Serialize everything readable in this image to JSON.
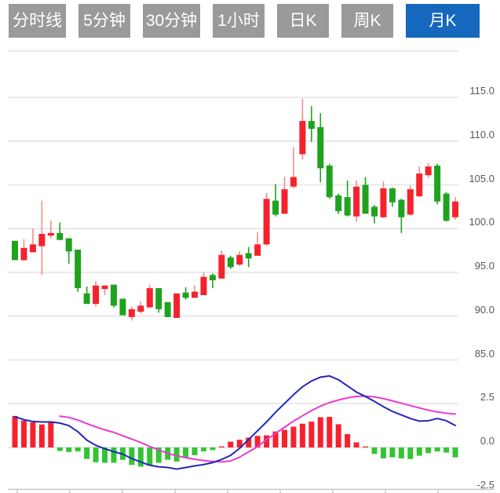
{
  "tabs": {
    "items": [
      {
        "label": "分时线",
        "active": false
      },
      {
        "label": "5分钟",
        "active": false
      },
      {
        "label": "30分钟",
        "active": false
      },
      {
        "label": "1小时",
        "active": false
      },
      {
        "label": "日K",
        "active": false
      },
      {
        "label": "周K",
        "active": false
      },
      {
        "label": "月K",
        "active": true
      }
    ]
  },
  "colors": {
    "tab_bg": "#9a9a9a",
    "tab_active_bg": "#1568bd",
    "tab_text": "#ffffff",
    "up": "#f5222d",
    "down": "#1fa31f",
    "up_wick": "#ef8f8f",
    "down_wick": "#1fa31f",
    "hist_up": "#f5222d",
    "hist_down": "#33c433",
    "dif_line": "#2326bb",
    "dea_line": "#ea3bd0",
    "grid": "#e3e3e3",
    "axis_line": "#c8c8c8",
    "axis_text": "#595959"
  },
  "chart_data": {
    "type": "candlestick",
    "title": "",
    "panels": [
      "price",
      "macd"
    ],
    "price_axis": {
      "tick_labels": [
        "115.0",
        "110.0",
        "105.0",
        "100.0",
        "95.0",
        "90.0",
        "85.0"
      ],
      "tick_values": [
        115,
        110,
        105,
        100,
        95,
        90,
        85
      ],
      "ylim": [
        84,
        120.5
      ],
      "grid": true,
      "legend": "none"
    },
    "macd_axis": {
      "tick_labels": [
        "2.5",
        "0.0",
        "-2.5"
      ],
      "tick_values": [
        2.5,
        0.0,
        -2.5
      ],
      "ylim": [
        -2.6,
        4.7
      ]
    },
    "candles_ohlc": [
      [
        98.6,
        98.6,
        96.4,
        96.4
      ],
      [
        96.4,
        98.8,
        96.3,
        97.8
      ],
      [
        97.3,
        100.0,
        97.3,
        98.2
      ],
      [
        98.0,
        103.2,
        94.7,
        99.4
      ],
      [
        99.2,
        100.9,
        98.9,
        99.5
      ],
      [
        99.5,
        100.7,
        98.7,
        98.7
      ],
      [
        98.9,
        98.9,
        96.0,
        97.4
      ],
      [
        97.6,
        97.6,
        92.8,
        93.2
      ],
      [
        92.6,
        93.4,
        91.4,
        91.4
      ],
      [
        91.4,
        94.0,
        91.1,
        93.5
      ],
      [
        93.1,
        93.5,
        92.4,
        93.5
      ],
      [
        93.6,
        93.6,
        91.0,
        91.2
      ],
      [
        92.0,
        92.0,
        90.1,
        90.1
      ],
      [
        89.9,
        91.1,
        89.5,
        90.8
      ],
      [
        90.5,
        91.7,
        90.3,
        91.2
      ],
      [
        91.0,
        93.6,
        91.0,
        93.2
      ],
      [
        93.2,
        93.2,
        90.4,
        90.8
      ],
      [
        91.6,
        91.6,
        89.9,
        89.9
      ],
      [
        89.8,
        92.6,
        89.8,
        92.6
      ],
      [
        92.7,
        93.3,
        91.9,
        92.1
      ],
      [
        92.1,
        93.5,
        92.1,
        92.8
      ],
      [
        92.4,
        95.0,
        92.4,
        94.5
      ],
      [
        94.7,
        94.9,
        93.2,
        94.1
      ],
      [
        94.3,
        97.5,
        94.3,
        97.0
      ],
      [
        96.7,
        96.9,
        95.4,
        95.6
      ],
      [
        95.9,
        97.4,
        95.7,
        97.0
      ],
      [
        97.2,
        97.9,
        95.6,
        96.6
      ],
      [
        96.9,
        99.6,
        96.9,
        98.2
      ],
      [
        98.2,
        104.1,
        98.0,
        103.4
      ],
      [
        103.2,
        105.1,
        101.4,
        101.6
      ],
      [
        101.7,
        105.9,
        101.7,
        104.5
      ],
      [
        104.8,
        109.3,
        104.6,
        105.9
      ],
      [
        108.5,
        114.85,
        107.9,
        112.3
      ],
      [
        112.3,
        114.0,
        109.9,
        111.4
      ],
      [
        111.6,
        113.2,
        105.3,
        106.9
      ],
      [
        107.2,
        107.4,
        103.4,
        103.6
      ],
      [
        103.8,
        104.0,
        101.7,
        102.0
      ],
      [
        103.6,
        105.5,
        101.4,
        101.5
      ],
      [
        101.4,
        105.5,
        100.8,
        104.8
      ],
      [
        105.0,
        105.9,
        101.7,
        101.7
      ],
      [
        102.5,
        102.7,
        100.6,
        101.4
      ],
      [
        101.3,
        105.4,
        101.2,
        104.6
      ],
      [
        104.6,
        104.7,
        102.5,
        103.0
      ],
      [
        103.3,
        103.4,
        99.5,
        101.3
      ],
      [
        101.6,
        104.9,
        101.5,
        104.5
      ],
      [
        103.7,
        107.1,
        103.6,
        106.3
      ],
      [
        106.1,
        107.5,
        105.8,
        107.1
      ],
      [
        107.2,
        107.4,
        102.8,
        103.1
      ],
      [
        104.0,
        104.2,
        100.8,
        100.9
      ],
      [
        101.3,
        103.6,
        101.0,
        103.1
      ]
    ],
    "macd": {
      "histogram": [
        1.79,
        1.53,
        1.43,
        1.31,
        1.48,
        -0.2,
        -0.26,
        -0.22,
        -0.65,
        -0.84,
        -0.87,
        -0.87,
        -0.7,
        -0.99,
        -1.09,
        -1.02,
        -0.87,
        -0.7,
        -0.8,
        -0.58,
        -0.44,
        -0.22,
        -0.15,
        0.05,
        0.33,
        0.44,
        0.56,
        0.66,
        0.69,
        0.91,
        1.0,
        1.18,
        1.35,
        1.47,
        1.72,
        1.74,
        1.32,
        0.76,
        0.29,
        0.05,
        -0.37,
        -0.62,
        -0.56,
        -0.62,
        -0.66,
        -0.47,
        -0.32,
        -0.22,
        -0.29,
        -0.56
      ],
      "dif": [
        1.75,
        1.58,
        1.48,
        1.45,
        1.45,
        1.39,
        1.24,
        0.9,
        0.42,
        0.12,
        -0.07,
        -0.24,
        -0.38,
        -0.63,
        -0.83,
        -1.01,
        -1.1,
        -1.14,
        -1.23,
        -1.14,
        -1.05,
        -0.97,
        -0.86,
        -0.68,
        -0.45,
        -0.05,
        0.45,
        0.95,
        1.45,
        2.0,
        2.5,
        3.0,
        3.45,
        3.78,
        4.0,
        4.07,
        3.85,
        3.5,
        3.15,
        2.9,
        2.62,
        2.32,
        2.05,
        1.85,
        1.65,
        1.5,
        1.52,
        1.65,
        1.52,
        1.25
      ],
      "dea": [
        null,
        null,
        null,
        null,
        null,
        1.78,
        1.71,
        1.56,
        1.36,
        1.17,
        1.0,
        0.86,
        0.66,
        0.48,
        0.28,
        0.06,
        -0.14,
        -0.34,
        -0.47,
        -0.58,
        -0.67,
        -0.74,
        -0.8,
        -0.82,
        -0.77,
        -0.55,
        -0.25,
        0.05,
        0.45,
        0.8,
        1.15,
        1.5,
        1.8,
        2.1,
        2.35,
        2.55,
        2.7,
        2.82,
        2.9,
        2.92,
        2.88,
        2.78,
        2.65,
        2.52,
        2.38,
        2.25,
        2.12,
        2.02,
        1.95,
        1.9
      ]
    }
  }
}
